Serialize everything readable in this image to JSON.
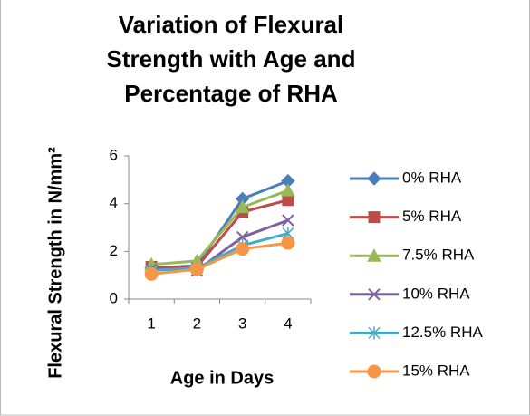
{
  "chart_data": {
    "type": "line",
    "title": "Variation of Flexural Strength with Age and Percentage of RHA",
    "x_label": "Age in Days",
    "y_label": "Flexural Strength in N/mm²",
    "categories": [
      "1",
      "2",
      "3",
      "4"
    ],
    "series": [
      {
        "name": "0% RHA",
        "color": "#4a7ebb",
        "marker": "diamond",
        "values": [
          1.3,
          1.4,
          4.2,
          4.95
        ]
      },
      {
        "name": "5% RHA",
        "color": "#be4b48",
        "marker": "square",
        "values": [
          1.35,
          1.35,
          3.65,
          4.15
        ]
      },
      {
        "name": "7.5% RHA",
        "color": "#98b954",
        "marker": "triangle",
        "values": [
          1.45,
          1.6,
          3.85,
          4.55
        ]
      },
      {
        "name": "10% RHA",
        "color": "#7d60a0",
        "marker": "x",
        "values": [
          1.25,
          1.2,
          2.6,
          3.3
        ]
      },
      {
        "name": "12.5% RHA",
        "color": "#46aac5",
        "marker": "star",
        "values": [
          1.2,
          1.3,
          2.25,
          2.75
        ]
      },
      {
        "name": "15% RHA",
        "color": "#f79646",
        "marker": "circle",
        "values": [
          1.05,
          1.25,
          2.1,
          2.35
        ]
      }
    ],
    "ylim": [
      0,
      6
    ],
    "yticks": [
      0,
      2,
      4,
      6
    ],
    "grid": false,
    "legend": "right"
  }
}
